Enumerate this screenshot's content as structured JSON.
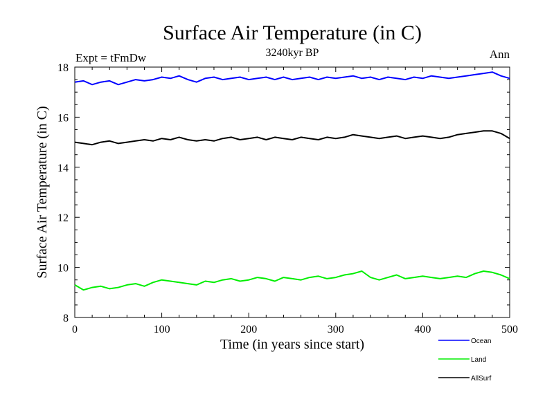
{
  "chart_data": {
    "type": "line",
    "title": "Surface Air Temperature (in C)",
    "subtitle": "3240kyr BP",
    "left_label": "Expt = tFmDw",
    "right_label": "Ann",
    "xlabel": "Time (in years since start)",
    "ylabel": "Surface Air Temperature (in C)",
    "xlim": [
      0,
      500
    ],
    "ylim": [
      8,
      18
    ],
    "x_ticks": [
      0,
      100,
      200,
      300,
      400,
      500
    ],
    "x_tick_labels": [
      "0",
      "100",
      "200",
      "300",
      "400",
      "500"
    ],
    "y_ticks": [
      8,
      10,
      12,
      14,
      16,
      18
    ],
    "y_tick_labels": [
      "8",
      "10",
      "12",
      "14",
      "16",
      "18"
    ],
    "grid": false,
    "legend_position": "bottom-right, below plot",
    "series": [
      {
        "name": "Ocean",
        "color": "#0000ff",
        "x": [
          0,
          10,
          20,
          30,
          40,
          50,
          60,
          70,
          80,
          90,
          100,
          110,
          120,
          130,
          140,
          150,
          160,
          170,
          180,
          190,
          200,
          210,
          220,
          230,
          240,
          250,
          260,
          270,
          280,
          290,
          300,
          310,
          320,
          330,
          340,
          350,
          360,
          370,
          380,
          390,
          400,
          410,
          420,
          430,
          440,
          450,
          460,
          470,
          480,
          490,
          500
        ],
        "values": [
          17.4,
          17.45,
          17.3,
          17.4,
          17.45,
          17.3,
          17.4,
          17.5,
          17.45,
          17.5,
          17.6,
          17.55,
          17.65,
          17.5,
          17.4,
          17.55,
          17.6,
          17.5,
          17.55,
          17.6,
          17.5,
          17.55,
          17.6,
          17.5,
          17.6,
          17.5,
          17.55,
          17.6,
          17.5,
          17.6,
          17.55,
          17.6,
          17.65,
          17.55,
          17.6,
          17.5,
          17.6,
          17.55,
          17.5,
          17.6,
          17.55,
          17.65,
          17.6,
          17.55,
          17.6,
          17.65,
          17.7,
          17.75,
          17.8,
          17.65,
          17.55
        ]
      },
      {
        "name": "Land",
        "color": "#00ee00",
        "x": [
          0,
          10,
          20,
          30,
          40,
          50,
          60,
          70,
          80,
          90,
          100,
          110,
          120,
          130,
          140,
          150,
          160,
          170,
          180,
          190,
          200,
          210,
          220,
          230,
          240,
          250,
          260,
          270,
          280,
          290,
          300,
          310,
          320,
          330,
          340,
          350,
          360,
          370,
          380,
          390,
          400,
          410,
          420,
          430,
          440,
          450,
          460,
          470,
          480,
          490,
          500
        ],
        "values": [
          9.3,
          9.1,
          9.2,
          9.25,
          9.15,
          9.2,
          9.3,
          9.35,
          9.25,
          9.4,
          9.5,
          9.45,
          9.4,
          9.35,
          9.3,
          9.45,
          9.4,
          9.5,
          9.55,
          9.45,
          9.5,
          9.6,
          9.55,
          9.45,
          9.6,
          9.55,
          9.5,
          9.6,
          9.65,
          9.55,
          9.6,
          9.7,
          9.75,
          9.85,
          9.6,
          9.5,
          9.6,
          9.7,
          9.55,
          9.6,
          9.65,
          9.6,
          9.55,
          9.6,
          9.65,
          9.6,
          9.75,
          9.85,
          9.8,
          9.7,
          9.55
        ]
      },
      {
        "name": "AllSurf",
        "color": "#000000",
        "x": [
          0,
          10,
          20,
          30,
          40,
          50,
          60,
          70,
          80,
          90,
          100,
          110,
          120,
          130,
          140,
          150,
          160,
          170,
          180,
          190,
          200,
          210,
          220,
          230,
          240,
          250,
          260,
          270,
          280,
          290,
          300,
          310,
          320,
          330,
          340,
          350,
          360,
          370,
          380,
          390,
          400,
          410,
          420,
          430,
          440,
          450,
          460,
          470,
          480,
          490,
          500
        ],
        "values": [
          15.0,
          14.95,
          14.9,
          15.0,
          15.05,
          14.95,
          15.0,
          15.05,
          15.1,
          15.05,
          15.15,
          15.1,
          15.2,
          15.1,
          15.05,
          15.1,
          15.05,
          15.15,
          15.2,
          15.1,
          15.15,
          15.2,
          15.1,
          15.2,
          15.15,
          15.1,
          15.2,
          15.15,
          15.1,
          15.2,
          15.15,
          15.2,
          15.3,
          15.25,
          15.2,
          15.15,
          15.2,
          15.25,
          15.15,
          15.2,
          15.25,
          15.2,
          15.15,
          15.2,
          15.3,
          15.35,
          15.4,
          15.45,
          15.45,
          15.35,
          15.15
        ]
      }
    ]
  }
}
